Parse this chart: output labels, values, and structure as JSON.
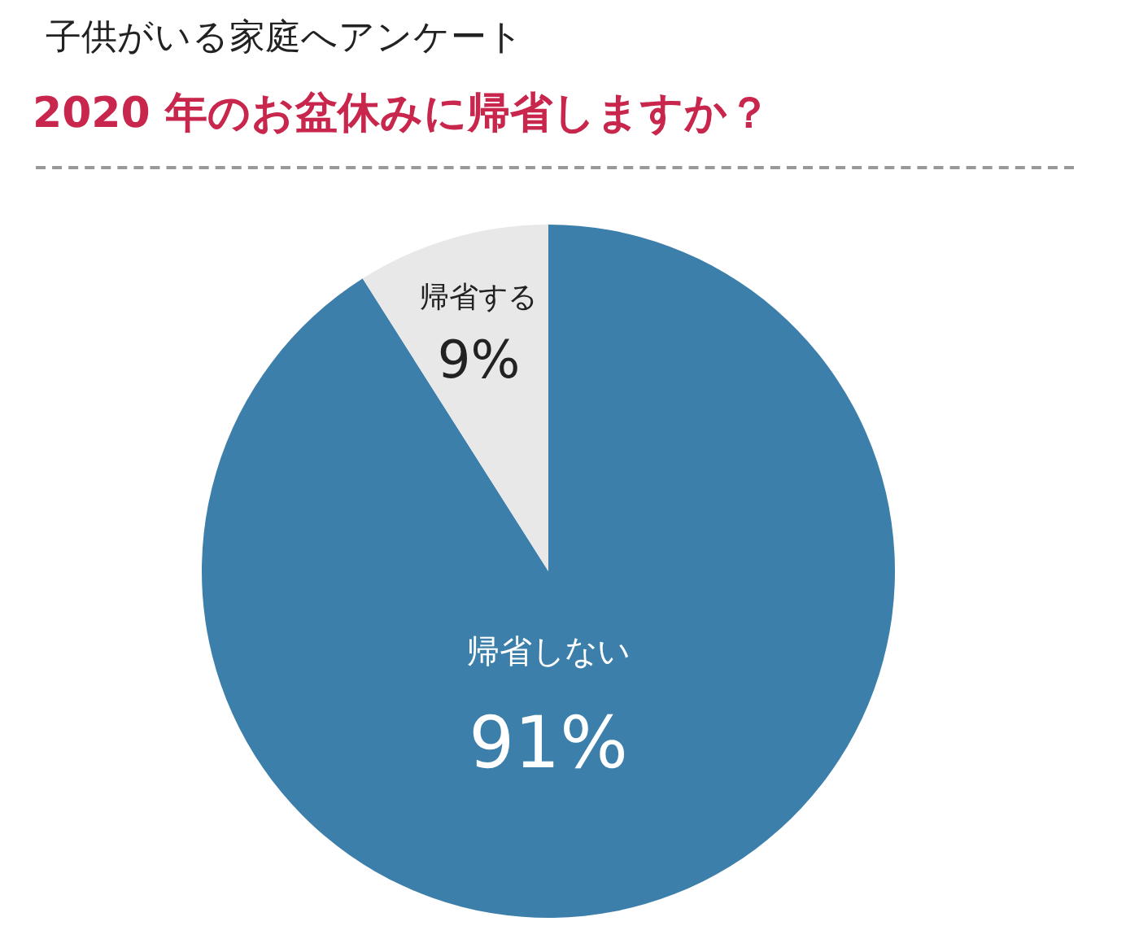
{
  "chart_data": {
    "type": "pie",
    "title": "子供がいる家庭へアンケート",
    "subtitle": "2020 年のお盆休みに帰省しますか？",
    "categories": [
      "帰省しない",
      "帰省する"
    ],
    "values": [
      91,
      9
    ],
    "colors": [
      "#3d7fab",
      "#e8e8e8"
    ],
    "value_labels": [
      "91%",
      "9%"
    ],
    "legend": false
  }
}
